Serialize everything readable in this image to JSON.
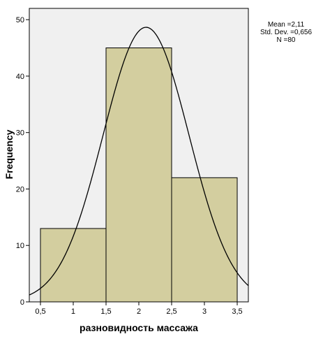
{
  "chart_data": {
    "type": "bar",
    "subtype": "histogram",
    "xlabel": "разновидность массажа",
    "ylabel": "Frequency",
    "bins": [
      {
        "start": 0.5,
        "end": 1.5,
        "count": 13
      },
      {
        "start": 1.5,
        "end": 2.5,
        "count": 45
      },
      {
        "start": 2.5,
        "end": 3.5,
        "count": 22
      }
    ],
    "xlim": [
      0.33,
      3.67
    ],
    "ylim": [
      0,
      52
    ],
    "x_ticks": [
      "0,5",
      "1",
      "1,5",
      "2",
      "2,5",
      "3",
      "3,5"
    ],
    "x_tick_values": [
      0.5,
      1,
      1.5,
      2,
      2.5,
      3,
      3.5
    ],
    "y_ticks": [
      "0",
      "10",
      "20",
      "30",
      "40",
      "50"
    ],
    "y_tick_values": [
      0,
      10,
      20,
      30,
      40,
      50
    ],
    "normal_curve": {
      "mean": 2.11,
      "std_dev": 0.656,
      "n": 80,
      "bin_width": 1
    },
    "stats_legend": {
      "mean": "Mean =2,11",
      "std_dev": "Std. Dev. =0,656",
      "n": "N =80"
    },
    "colors": {
      "plot_background": "#f0f0f0",
      "bar_fill": "#d3ce9f",
      "bar_stroke": "#000000",
      "curve": "#000000"
    },
    "grid": false,
    "legend_position": "top-right"
  }
}
